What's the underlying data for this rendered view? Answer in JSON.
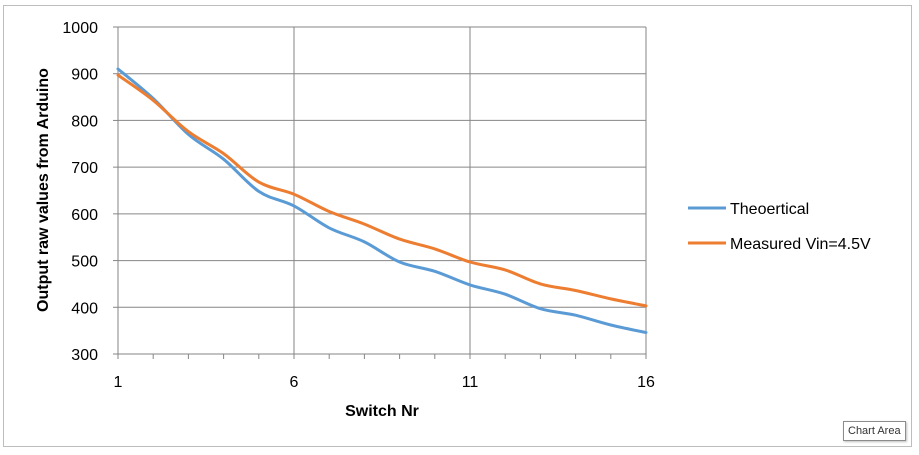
{
  "chart_data": {
    "type": "line",
    "xlabel": "Switch Nr",
    "ylabel": "Output raw values from Arduino",
    "xlim": [
      1,
      16
    ],
    "ylim": [
      300,
      1000
    ],
    "x_ticks": [
      1,
      6,
      11,
      16
    ],
    "y_ticks": [
      300,
      400,
      500,
      600,
      700,
      800,
      900,
      1000
    ],
    "grid": true,
    "legend_position": "right",
    "x": [
      1,
      2,
      3,
      4,
      5,
      6,
      7,
      8,
      9,
      10,
      11,
      12,
      13,
      14,
      15,
      16
    ],
    "series": [
      {
        "name": "Theoertical",
        "color": "#5b9bd5",
        "values": [
          910,
          847,
          770,
          717,
          648,
          617,
          570,
          540,
          497,
          477,
          448,
          428,
          397,
          383,
          362,
          346
        ]
      },
      {
        "name": "Measured Vin=4.5V",
        "color": "#ed7d31",
        "values": [
          897,
          843,
          776,
          729,
          668,
          642,
          605,
          578,
          546,
          525,
          497,
          480,
          450,
          436,
          418,
          403
        ]
      }
    ]
  },
  "tooltip": {
    "text": "Chart Area"
  }
}
